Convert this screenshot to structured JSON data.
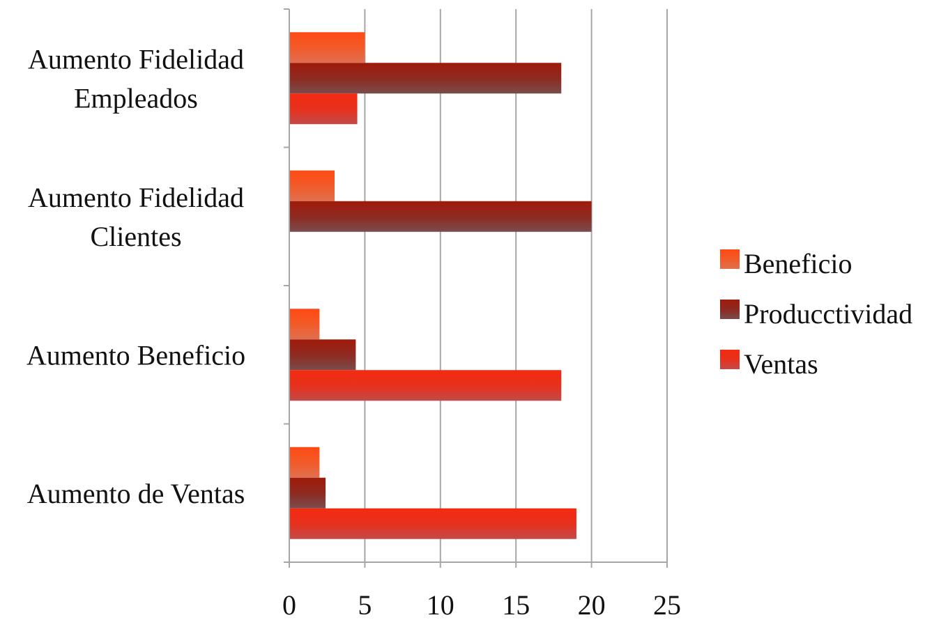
{
  "chart_data": {
    "type": "bar",
    "orientation": "horizontal",
    "categories": [
      "Aumento de Ventas",
      "Aumento Beneficio",
      "Aumento Fidelidad Clientes",
      "Aumento Fidelidad Empleados"
    ],
    "category_lines": [
      [
        "Aumento de Ventas"
      ],
      [
        "Aumento Beneficio"
      ],
      [
        "Aumento Fidelidad",
        "Clientes"
      ],
      [
        "Aumento Fidelidad",
        "Empleados"
      ]
    ],
    "series": [
      {
        "name": "Ventas",
        "values": [
          19,
          18,
          0,
          4.5
        ],
        "color": "#e8301c"
      },
      {
        "name": "Producctividad",
        "values": [
          2.4,
          4.4,
          20,
          18
        ],
        "color": "#8e2a20"
      },
      {
        "name": "Beneficio",
        "values": [
          2,
          2,
          3,
          5
        ],
        "color": "#f25a28"
      }
    ],
    "legend_order": [
      "Beneficio",
      "Producctividad",
      "Ventas"
    ],
    "xlim": [
      0,
      25
    ],
    "xticks": [
      0,
      5,
      10,
      15,
      20,
      25
    ],
    "grid": true,
    "legend_position": "right",
    "title": "",
    "xlabel": "",
    "ylabel": ""
  }
}
